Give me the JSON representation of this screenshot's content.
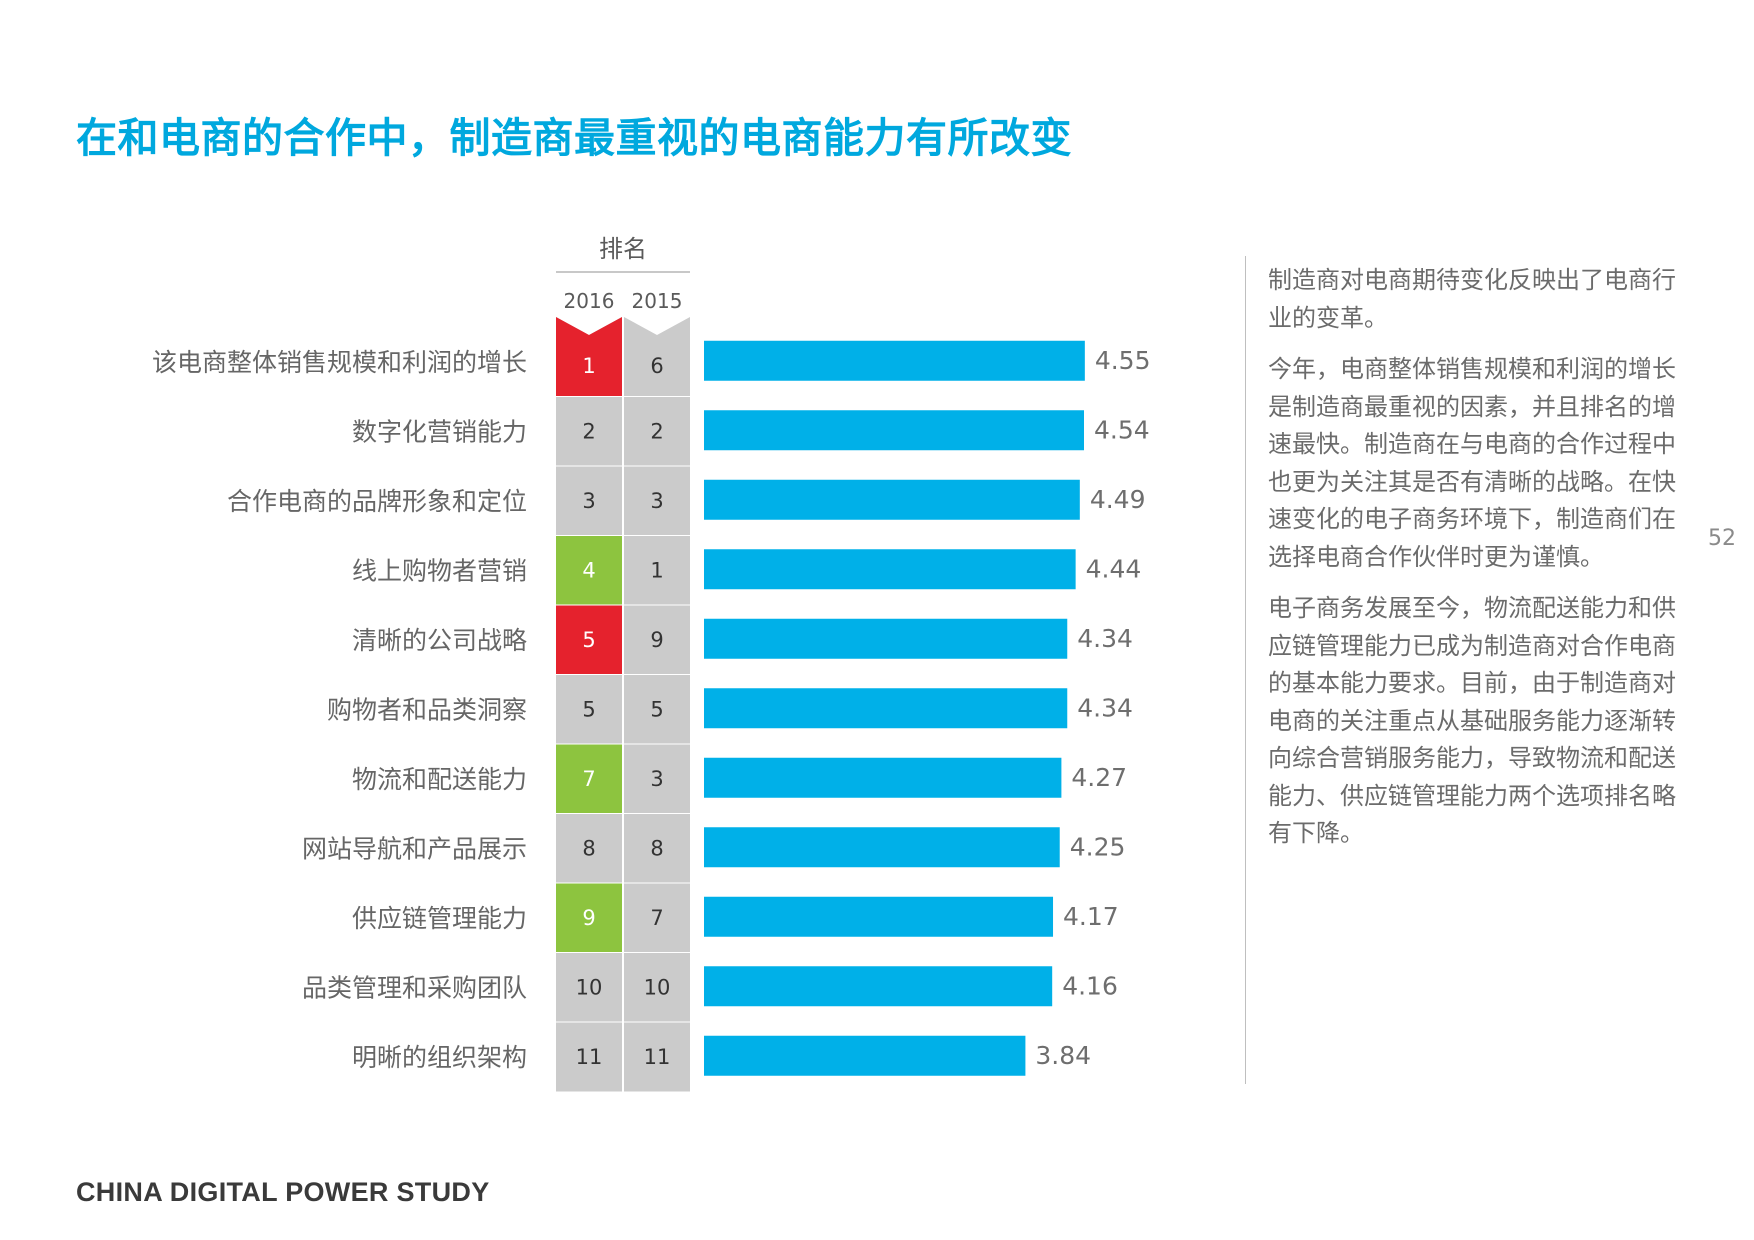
{
  "title": "在和电商的合作中，制造商最重视的电商能力有所改变",
  "chart_data": {
    "type": "bar",
    "orientation": "horizontal",
    "rank_header": "排名",
    "rank_years": [
      "2016",
      "2015"
    ],
    "categories": [
      "该电商整体销售规模和利润的增长",
      "数字化营销能力",
      "合作电商的品牌形象和定位",
      "线上购物者营销",
      "清晰的公司战略",
      "购物者和品类洞察",
      "物流和配送能力",
      "网站导航和产品展示",
      "供应链管理能力",
      "品类管理和采购团队",
      "明晰的组织架构"
    ],
    "values": [
      4.55,
      4.54,
      4.49,
      4.44,
      4.34,
      4.34,
      4.27,
      4.25,
      4.17,
      4.16,
      3.84
    ],
    "value_labels": [
      "4.55",
      "4.54",
      "4.49",
      "4.44",
      "4.34",
      "4.34",
      "4.27",
      "4.25",
      "4.17",
      "4.16",
      "3.84"
    ],
    "rank_2016": [
      "1",
      "2",
      "3",
      "4",
      "5",
      "5",
      "7",
      "8",
      "9",
      "10",
      "11"
    ],
    "rank_2015": [
      "6",
      "2",
      "3",
      "1",
      "9",
      "5",
      "3",
      "8",
      "7",
      "10",
      "11"
    ],
    "rank_change": [
      "up",
      "same",
      "same",
      "down",
      "up",
      "same",
      "down",
      "same",
      "down",
      "same",
      "same"
    ],
    "colors": {
      "bar": "#00b0e8",
      "up": "#e5222d",
      "down": "#8dc43f",
      "same": "#cbcbcb",
      "title": "#00a8de"
    }
  },
  "sidebar": {
    "paragraphs": [
      "制造商对电商期待变化反映出了电商行业的变革。",
      "今年，电商整体销售规模和利润的增长是制造商最重视的因素，并且排名的增速最快。制造商在与电商的合作过程中也更为关注其是否有清晰的战略。在快速变化的电子商务环境下，制造商们在选择电商合作伙伴时更为谨慎。",
      "电子商务发展至今，物流配送能力和供应链管理能力已成为制造商对合作电商的基本能力要求。目前，由于制造商对电商的关注重点从基础服务能力逐渐转向综合营销服务能力，导致物流和配送能力、供应链管理能力两个选项排名略有下降。"
    ]
  },
  "page_number": "52",
  "footer": "CHINA DIGITAL POWER STUDY"
}
